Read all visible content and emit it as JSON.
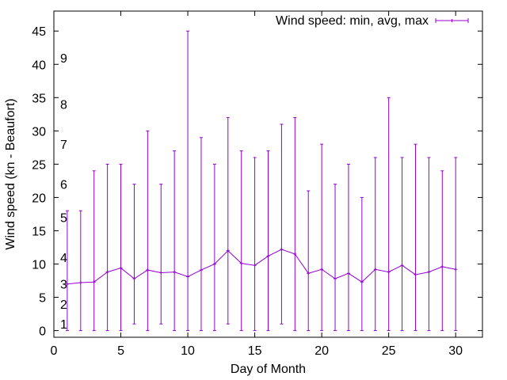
{
  "chart_data": {
    "type": "line",
    "style": "errorlines",
    "xlabel": "Day of Month",
    "ylabel": "Wind speed (kn - Beaufort)",
    "xlim": [
      0,
      32
    ],
    "ylim": [
      -1,
      48
    ],
    "xticks": [
      0,
      5,
      10,
      15,
      20,
      25,
      30
    ],
    "yticks": [
      0,
      5,
      10,
      15,
      20,
      25,
      30,
      35,
      40,
      45
    ],
    "grid": false,
    "legend_position": "top-right",
    "color": "#9400d3",
    "series": [
      {
        "name": "Wind speed: min, avg, max",
        "x": [
          1,
          2,
          3,
          4,
          5,
          6,
          7,
          8,
          9,
          10,
          11,
          12,
          13,
          14,
          15,
          16,
          17,
          18,
          19,
          20,
          21,
          22,
          23,
          24,
          25,
          26,
          27,
          28,
          29,
          30
        ],
        "min": [
          0,
          0,
          0,
          0,
          0,
          1,
          0,
          1,
          0,
          0,
          0,
          0,
          1,
          0,
          0,
          0,
          1,
          0,
          0,
          0,
          0,
          0,
          0,
          0,
          0,
          0,
          0,
          0,
          0,
          0
        ],
        "avg": [
          7,
          7.2,
          7.3,
          8.8,
          9.4,
          7.8,
          9.1,
          8.7,
          8.8,
          8.1,
          9.1,
          10,
          12,
          10.1,
          9.8,
          11.2,
          12.2,
          11.5,
          8.6,
          9.2,
          7.8,
          8.6,
          7.3,
          9.2,
          8.8,
          9.8,
          8.4,
          8.8,
          9.6,
          9.2
        ],
        "max": [
          18,
          18,
          24,
          25,
          25,
          22,
          30,
          22,
          27,
          45,
          29,
          25,
          32,
          27,
          26,
          27,
          31,
          32,
          21,
          28,
          22,
          25,
          20,
          26,
          35,
          26,
          28,
          26,
          24,
          26
        ]
      }
    ],
    "annotations": [
      {
        "text": "1",
        "y": 1
      },
      {
        "text": "2",
        "y": 4
      },
      {
        "text": "3",
        "y": 7
      },
      {
        "text": "4",
        "y": 11
      },
      {
        "text": "5",
        "y": 17
      },
      {
        "text": "6",
        "y": 22
      },
      {
        "text": "7",
        "y": 28
      },
      {
        "text": "8",
        "y": 34
      },
      {
        "text": "9",
        "y": 41
      }
    ]
  }
}
